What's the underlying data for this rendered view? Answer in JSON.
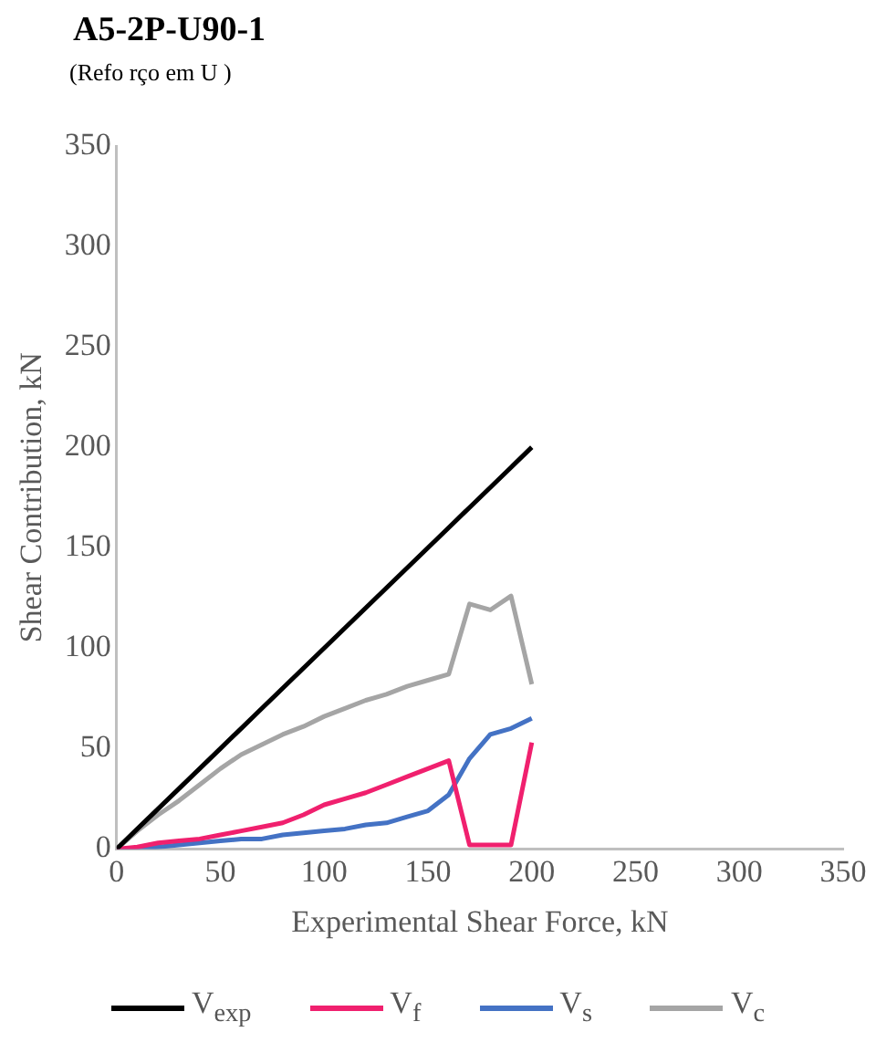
{
  "chart_data": {
    "type": "line",
    "title": "A5-2P-U90-1",
    "subtitle": "(Refo rço  em U )",
    "xlabel": "Experimental Shear Force, kN",
    "ylabel": "Shear Contribution, kN",
    "x": [
      0,
      10,
      20,
      30,
      40,
      50,
      60,
      70,
      80,
      90,
      100,
      110,
      120,
      130,
      140,
      150,
      160,
      170,
      180,
      190,
      200
    ],
    "xlim": [
      0,
      350
    ],
    "xticks": [
      0,
      50,
      100,
      150,
      200,
      250,
      300,
      350
    ],
    "ylim": [
      0,
      350
    ],
    "yticks": [
      0,
      50,
      100,
      150,
      200,
      250,
      300,
      350
    ],
    "grid": false,
    "legend": "bottom",
    "marker": "none",
    "line_style": "solid",
    "series": [
      {
        "name": "V$_{exp}$",
        "color": "#000000",
        "values": [
          0,
          10,
          20,
          30,
          40,
          50,
          60,
          70,
          80,
          90,
          100,
          110,
          120,
          130,
          140,
          150,
          160,
          170,
          180,
          190,
          200
        ]
      },
      {
        "name": "V$_{f}$",
        "color": "#f0206e",
        "values": [
          0,
          1,
          3,
          4,
          5,
          7,
          9,
          11,
          13,
          17,
          22,
          25,
          28,
          32,
          36,
          40,
          44,
          2,
          2,
          2,
          53
        ]
      },
      {
        "name": "V$_{s}$",
        "color": "#4472c4",
        "values": [
          0,
          0,
          1,
          2,
          3,
          4,
          5,
          5,
          7,
          8,
          9,
          10,
          12,
          13,
          16,
          19,
          27,
          45,
          57,
          60,
          65
        ]
      },
      {
        "name": "V$_{c}$",
        "color": "#a5a5a5",
        "values": [
          0,
          9,
          17,
          24,
          32,
          40,
          47,
          52,
          57,
          61,
          66,
          70,
          74,
          77,
          81,
          84,
          87,
          122,
          119,
          126,
          82
        ]
      }
    ]
  }
}
